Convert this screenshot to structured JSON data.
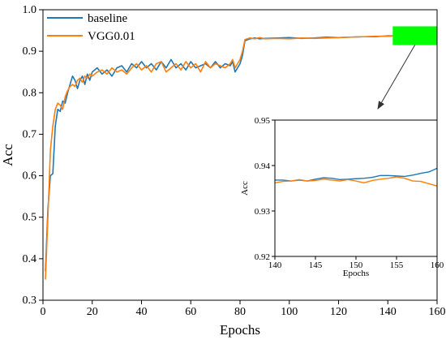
{
  "chart_data": [
    {
      "type": "line",
      "xlabel": "Epochs",
      "ylabel": "Acc",
      "xlim": [
        0,
        160
      ],
      "ylim": [
        0.3,
        1.0
      ],
      "x_ticks": [
        0,
        20,
        40,
        60,
        80,
        100,
        120,
        140,
        160
      ],
      "y_ticks": [
        0.3,
        0.4,
        0.5,
        0.6,
        0.7,
        0.8,
        0.9,
        1.0
      ],
      "x_tick_labels": [
        "0",
        "20",
        "40",
        "60",
        "80",
        "100",
        "120",
        "140",
        "160"
      ],
      "y_tick_labels": [
        "0.3",
        "0.4",
        "0.5",
        "0.6",
        "0.7",
        "0.8",
        "0.9",
        "1.0"
      ],
      "legend_position": "top-left",
      "grid": false,
      "highlight_region": {
        "x": [
          142,
          160
        ],
        "y": [
          0.915,
          0.96
        ],
        "color": "#00ff00"
      },
      "series": [
        {
          "name": "baseline",
          "color": "#1f77b4",
          "x": [
            1,
            2,
            3,
            4,
            5,
            6,
            7,
            8,
            9,
            10,
            11,
            12,
            13,
            14,
            15,
            16,
            17,
            18,
            19,
            20,
            22,
            24,
            26,
            28,
            30,
            32,
            34,
            36,
            38,
            40,
            42,
            44,
            46,
            48,
            50,
            52,
            54,
            56,
            58,
            60,
            62,
            64,
            66,
            68,
            70,
            72,
            74,
            76,
            77,
            78,
            79,
            80,
            81,
            82,
            84,
            86,
            88,
            90,
            95,
            100,
            105,
            110,
            115,
            120,
            125,
            130,
            135,
            140,
            145,
            150,
            155,
            160
          ],
          "y": [
            0.37,
            0.52,
            0.6,
            0.605,
            0.72,
            0.76,
            0.755,
            0.78,
            0.775,
            0.8,
            0.82,
            0.84,
            0.83,
            0.81,
            0.83,
            0.84,
            0.82,
            0.845,
            0.83,
            0.85,
            0.86,
            0.845,
            0.855,
            0.84,
            0.86,
            0.865,
            0.85,
            0.87,
            0.86,
            0.875,
            0.86,
            0.87,
            0.855,
            0.875,
            0.86,
            0.88,
            0.86,
            0.87,
            0.855,
            0.875,
            0.86,
            0.865,
            0.87,
            0.86,
            0.875,
            0.86,
            0.87,
            0.865,
            0.875,
            0.85,
            0.86,
            0.87,
            0.89,
            0.925,
            0.93,
            0.932,
            0.93,
            0.931,
            0.932,
            0.933,
            0.931,
            0.932,
            0.934,
            0.933,
            0.934,
            0.935,
            0.935,
            0.937,
            0.937,
            0.937,
            0.938,
            0.939
          ]
        },
        {
          "name": "VGG0.01",
          "color": "#ff7f0e",
          "x": [
            1,
            2,
            3,
            4,
            5,
            6,
            7,
            8,
            9,
            10,
            11,
            12,
            13,
            14,
            15,
            16,
            17,
            18,
            19,
            20,
            22,
            24,
            26,
            28,
            30,
            32,
            34,
            36,
            38,
            40,
            42,
            44,
            46,
            48,
            50,
            52,
            54,
            56,
            58,
            60,
            62,
            64,
            66,
            68,
            70,
            72,
            74,
            76,
            77,
            78,
            79,
            80,
            81,
            82,
            84,
            86,
            88,
            90,
            95,
            100,
            105,
            110,
            115,
            120,
            125,
            130,
            135,
            140,
            145,
            150,
            155,
            160
          ],
          "y": [
            0.35,
            0.5,
            0.66,
            0.72,
            0.76,
            0.775,
            0.77,
            0.76,
            0.79,
            0.805,
            0.815,
            0.82,
            0.815,
            0.83,
            0.835,
            0.825,
            0.84,
            0.835,
            0.845,
            0.84,
            0.85,
            0.855,
            0.845,
            0.86,
            0.85,
            0.855,
            0.845,
            0.86,
            0.87,
            0.855,
            0.865,
            0.85,
            0.87,
            0.875,
            0.85,
            0.86,
            0.87,
            0.855,
            0.875,
            0.86,
            0.87,
            0.85,
            0.875,
            0.86,
            0.87,
            0.865,
            0.86,
            0.87,
            0.88,
            0.86,
            0.87,
            0.88,
            0.9,
            0.928,
            0.932,
            0.93,
            0.933,
            0.93,
            0.931,
            0.93,
            0.932,
            0.931,
            0.932,
            0.933,
            0.934,
            0.935,
            0.936,
            0.936,
            0.937,
            0.936,
            0.937,
            0.936
          ]
        }
      ]
    },
    {
      "type": "line",
      "xlabel": "Epochs",
      "ylabel": "Acc",
      "xlim": [
        140,
        160
      ],
      "ylim": [
        0.92,
        0.95
      ],
      "x_ticks": [
        140,
        145,
        150,
        155,
        160
      ],
      "y_ticks": [
        0.92,
        0.93,
        0.94,
        0.95
      ],
      "x_tick_labels": [
        "140",
        "145",
        "150",
        "155",
        "160"
      ],
      "y_tick_labels": [
        "0.92",
        "0.93",
        "0.94",
        "0.95"
      ],
      "grid": false,
      "series": [
        {
          "name": "baseline",
          "color": "#1f77b4",
          "x": [
            140,
            141,
            142,
            143,
            144,
            145,
            146,
            147,
            148,
            149,
            150,
            151,
            152,
            153,
            154,
            155,
            156,
            157,
            158,
            159,
            160
          ],
          "y": [
            0.9368,
            0.9368,
            0.9366,
            0.9368,
            0.9366,
            0.937,
            0.9373,
            0.9372,
            0.9369,
            0.937,
            0.9371,
            0.9372,
            0.9374,
            0.9378,
            0.9378,
            0.9377,
            0.9376,
            0.9379,
            0.9383,
            0.9386,
            0.9394
          ]
        },
        {
          "name": "VGG0.01",
          "color": "#ff7f0e",
          "x": [
            140,
            141,
            142,
            143,
            144,
            145,
            146,
            147,
            148,
            149,
            150,
            151,
            152,
            153,
            154,
            155,
            156,
            157,
            158,
            159,
            160
          ],
          "y": [
            0.9362,
            0.9365,
            0.9366,
            0.9369,
            0.9366,
            0.9367,
            0.937,
            0.9368,
            0.9366,
            0.9369,
            0.9366,
            0.9362,
            0.9367,
            0.937,
            0.9372,
            0.9375,
            0.9372,
            0.9366,
            0.9365,
            0.936,
            0.9355
          ]
        }
      ]
    }
  ]
}
